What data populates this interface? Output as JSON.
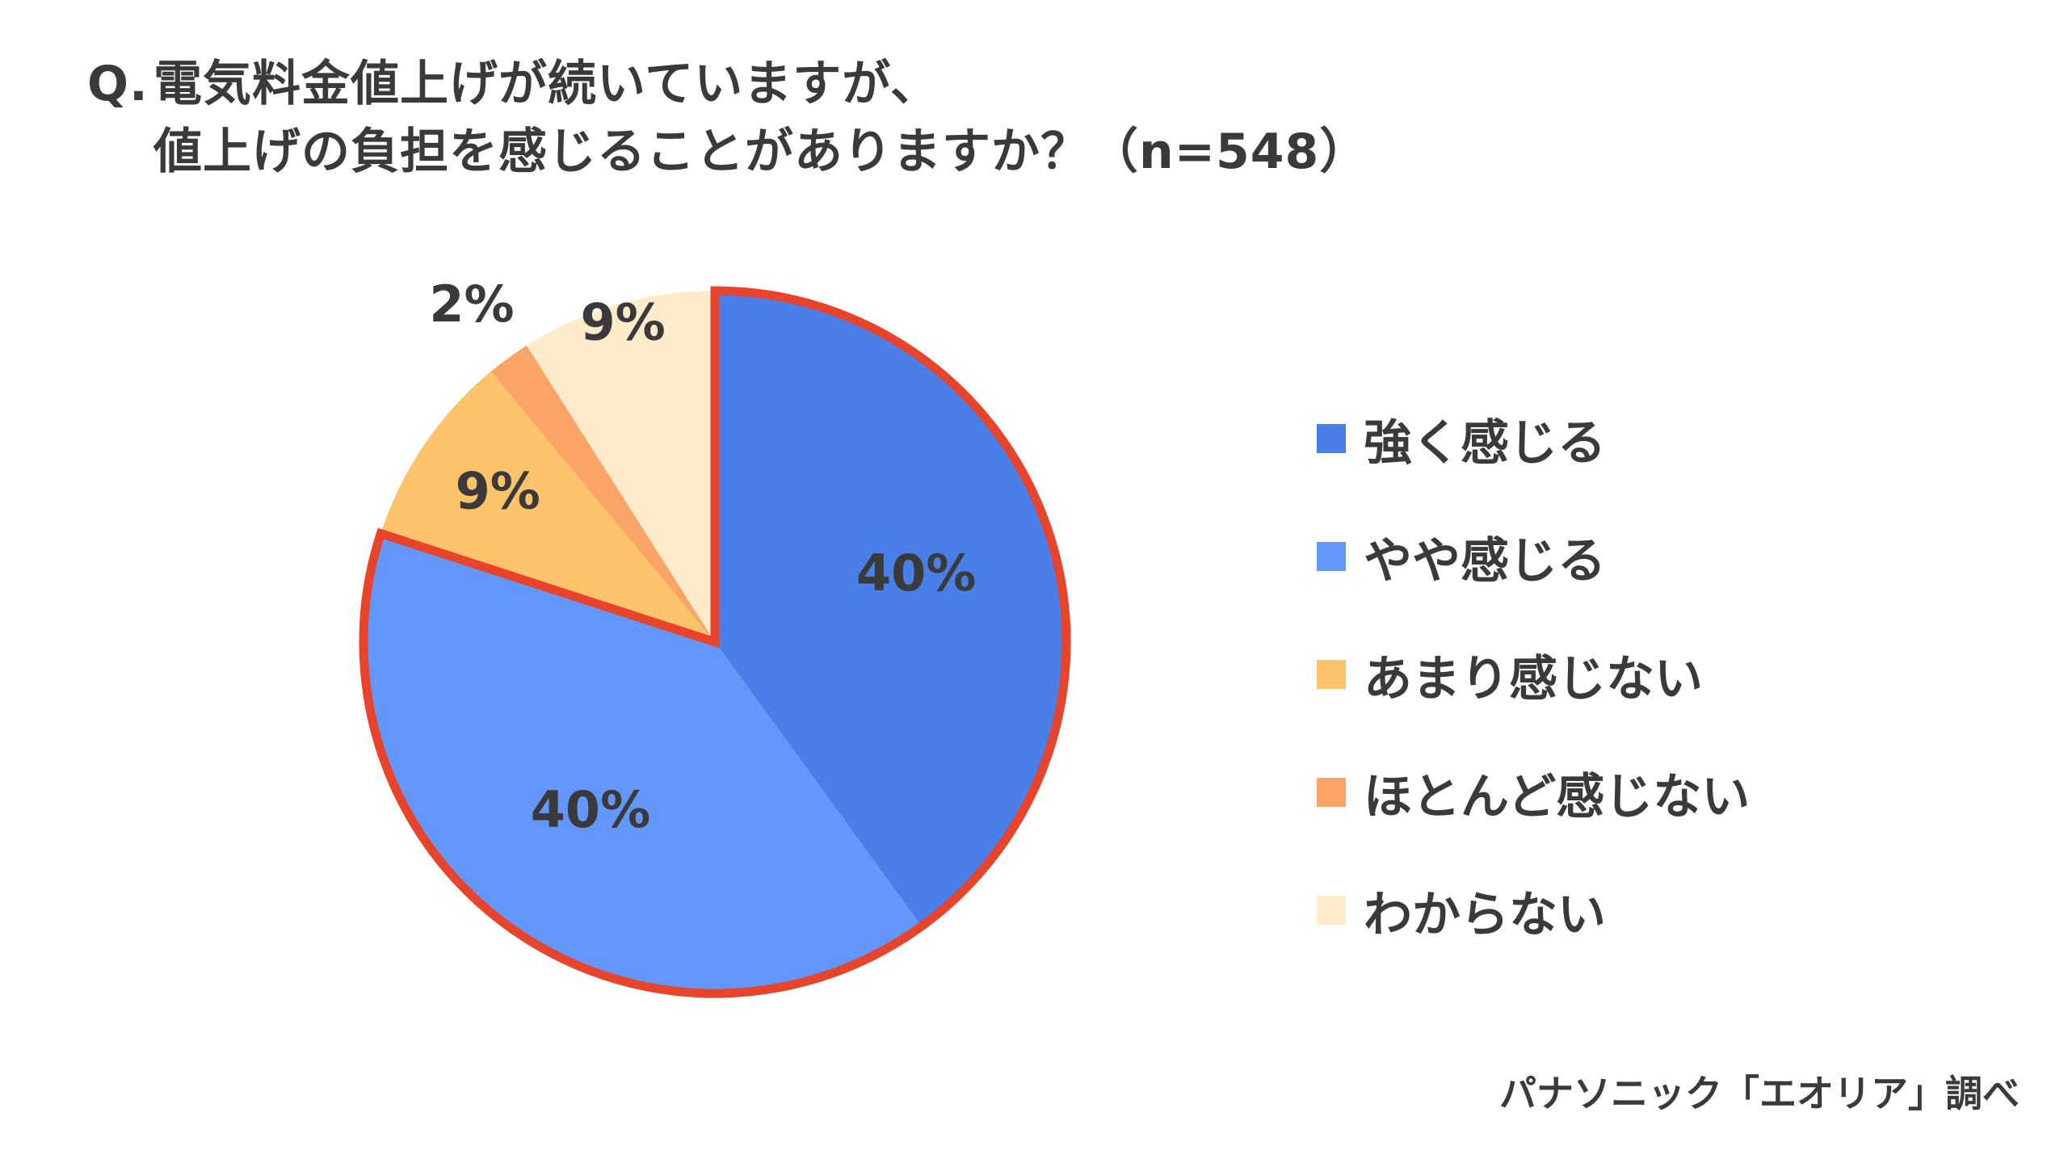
{
  "chart_data": {
    "type": "pie",
    "title_line1": "電気料金値上げが続いていますが、",
    "title_line2": "値上げの負担を感じることがありますか？（n=548）",
    "title_prefix": "Q.",
    "categories": [
      "強く感じる",
      "やや感じる",
      "あまり感じない",
      "ほとんど感じない",
      "わからない"
    ],
    "values": [
      40,
      40,
      9,
      2,
      9
    ],
    "value_labels": [
      "40%",
      "40%",
      "9%",
      "2%",
      "9%"
    ],
    "colors": [
      "#4a7fe8",
      "#6497fb",
      "#fdc36a",
      "#fba467",
      "#fdebc9"
    ],
    "highlight_outline_color": "#e8432b",
    "highlighted_categories": [
      "強く感じる",
      "やや感じる"
    ],
    "legend_position": "right",
    "start_angle": "top",
    "direction": "clockwise"
  },
  "source": "パナソニック「エオリア」調べ"
}
